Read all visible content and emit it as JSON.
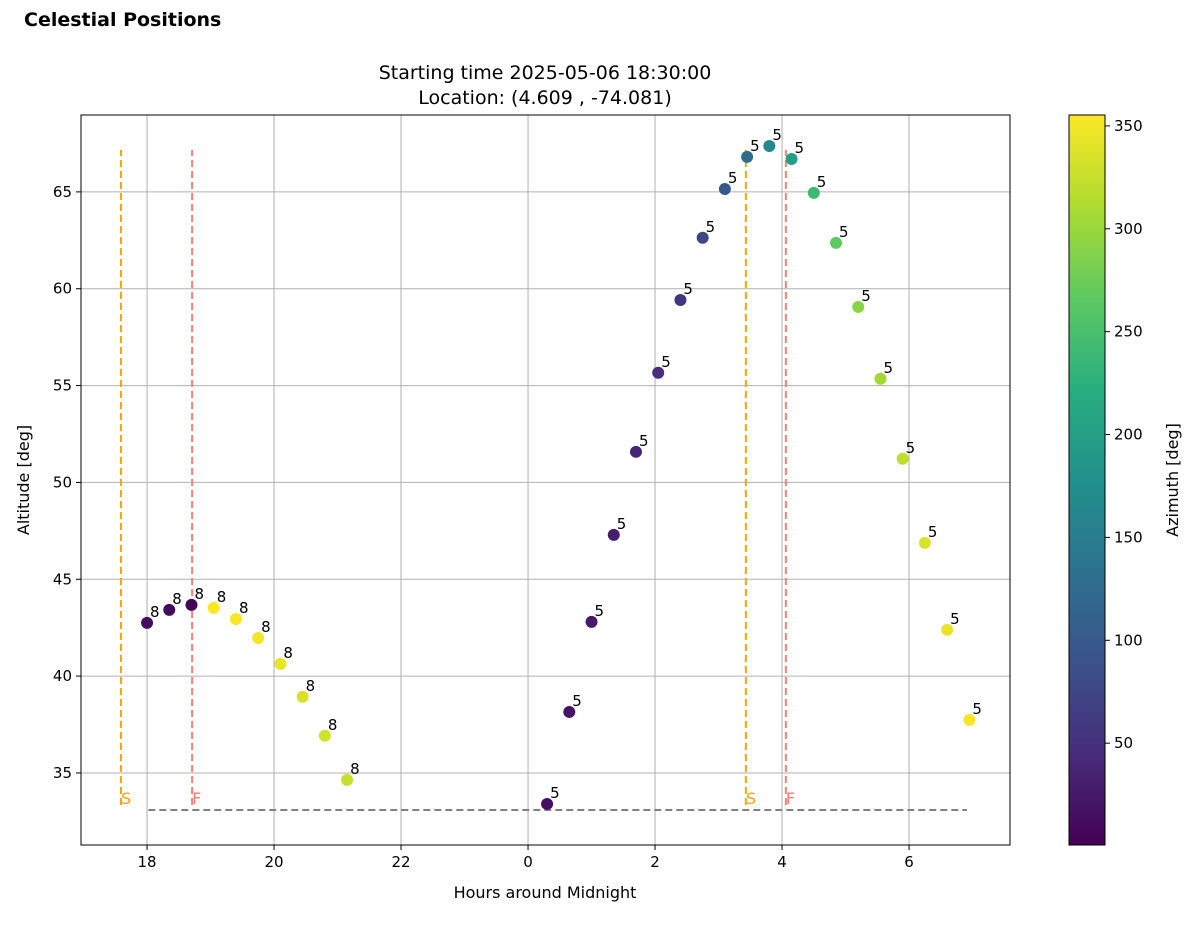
{
  "page_title": "Celestial Positions",
  "chart_data": {
    "type": "scatter",
    "title": "Starting time 2025-05-06 18:30:00",
    "subtitle": "Location: (4.609 , -74.081)",
    "x_label": "Hours around Midnight",
    "y_label": "Altitude [deg]",
    "xlim": [
      -7.04,
      7.59
    ],
    "ylim": [
      31.28,
      68.97
    ],
    "xticks": [
      {
        "value": -6,
        "label": "18"
      },
      {
        "value": -4,
        "label": "20"
      },
      {
        "value": -2,
        "label": "22"
      },
      0,
      2,
      4,
      6
    ],
    "yticks": [
      35,
      40,
      45,
      50,
      55,
      60,
      65
    ],
    "grid": true,
    "colorbar": {
      "label": "Azimuth [deg]",
      "colormap": "viridis",
      "lim": [
        0.5,
        355.3
      ],
      "ticks": [
        50,
        100,
        150,
        200,
        250,
        300,
        350
      ]
    },
    "series": [
      {
        "point_label": "8",
        "x": [
          -6.0,
          -5.65,
          -5.3,
          -4.95,
          -4.6,
          -4.25,
          -3.9,
          -3.55,
          -3.2,
          -2.85
        ],
        "values": [
          42.75,
          43.42,
          43.68,
          43.52,
          42.95,
          41.97,
          40.63,
          38.93,
          36.92,
          34.64
        ],
        "azimuth": [
          15,
          12,
          5,
          355,
          353,
          350,
          345,
          335,
          330,
          325
        ]
      },
      {
        "point_label": "5",
        "x": [
          0.3,
          0.65,
          1.0,
          1.35,
          1.7,
          2.05,
          2.4,
          2.75,
          3.1,
          3.45,
          3.8,
          4.15,
          4.5,
          4.85,
          5.2,
          5.55,
          5.9,
          6.25,
          6.6,
          6.95
        ],
        "values": [
          33.4,
          38.15,
          42.8,
          47.29,
          51.58,
          55.66,
          59.42,
          62.63,
          65.15,
          66.81,
          67.37,
          66.7,
          64.95,
          62.37,
          59.06,
          55.35,
          51.22,
          46.88,
          42.39,
          37.74
        ],
        "azimuth": [
          15,
          20,
          25,
          30,
          38,
          45,
          55,
          75,
          100,
          125,
          165,
          200,
          240,
          268,
          290,
          305,
          320,
          335,
          345,
          352
        ]
      }
    ],
    "vlines": [
      {
        "x": -6.41,
        "label": "S",
        "color": "orange"
      },
      {
        "x": -5.29,
        "label": "F",
        "color": "salmon"
      },
      {
        "x": 3.43,
        "label": "S",
        "color": "orange"
      },
      {
        "x": 4.06,
        "label": "F",
        "color": "salmon"
      }
    ],
    "vline_range": [
      33.09,
      67.17
    ],
    "hline": {
      "y": 33.09,
      "xmin": -5.98,
      "xmax": 6.91,
      "color": "gray"
    }
  }
}
